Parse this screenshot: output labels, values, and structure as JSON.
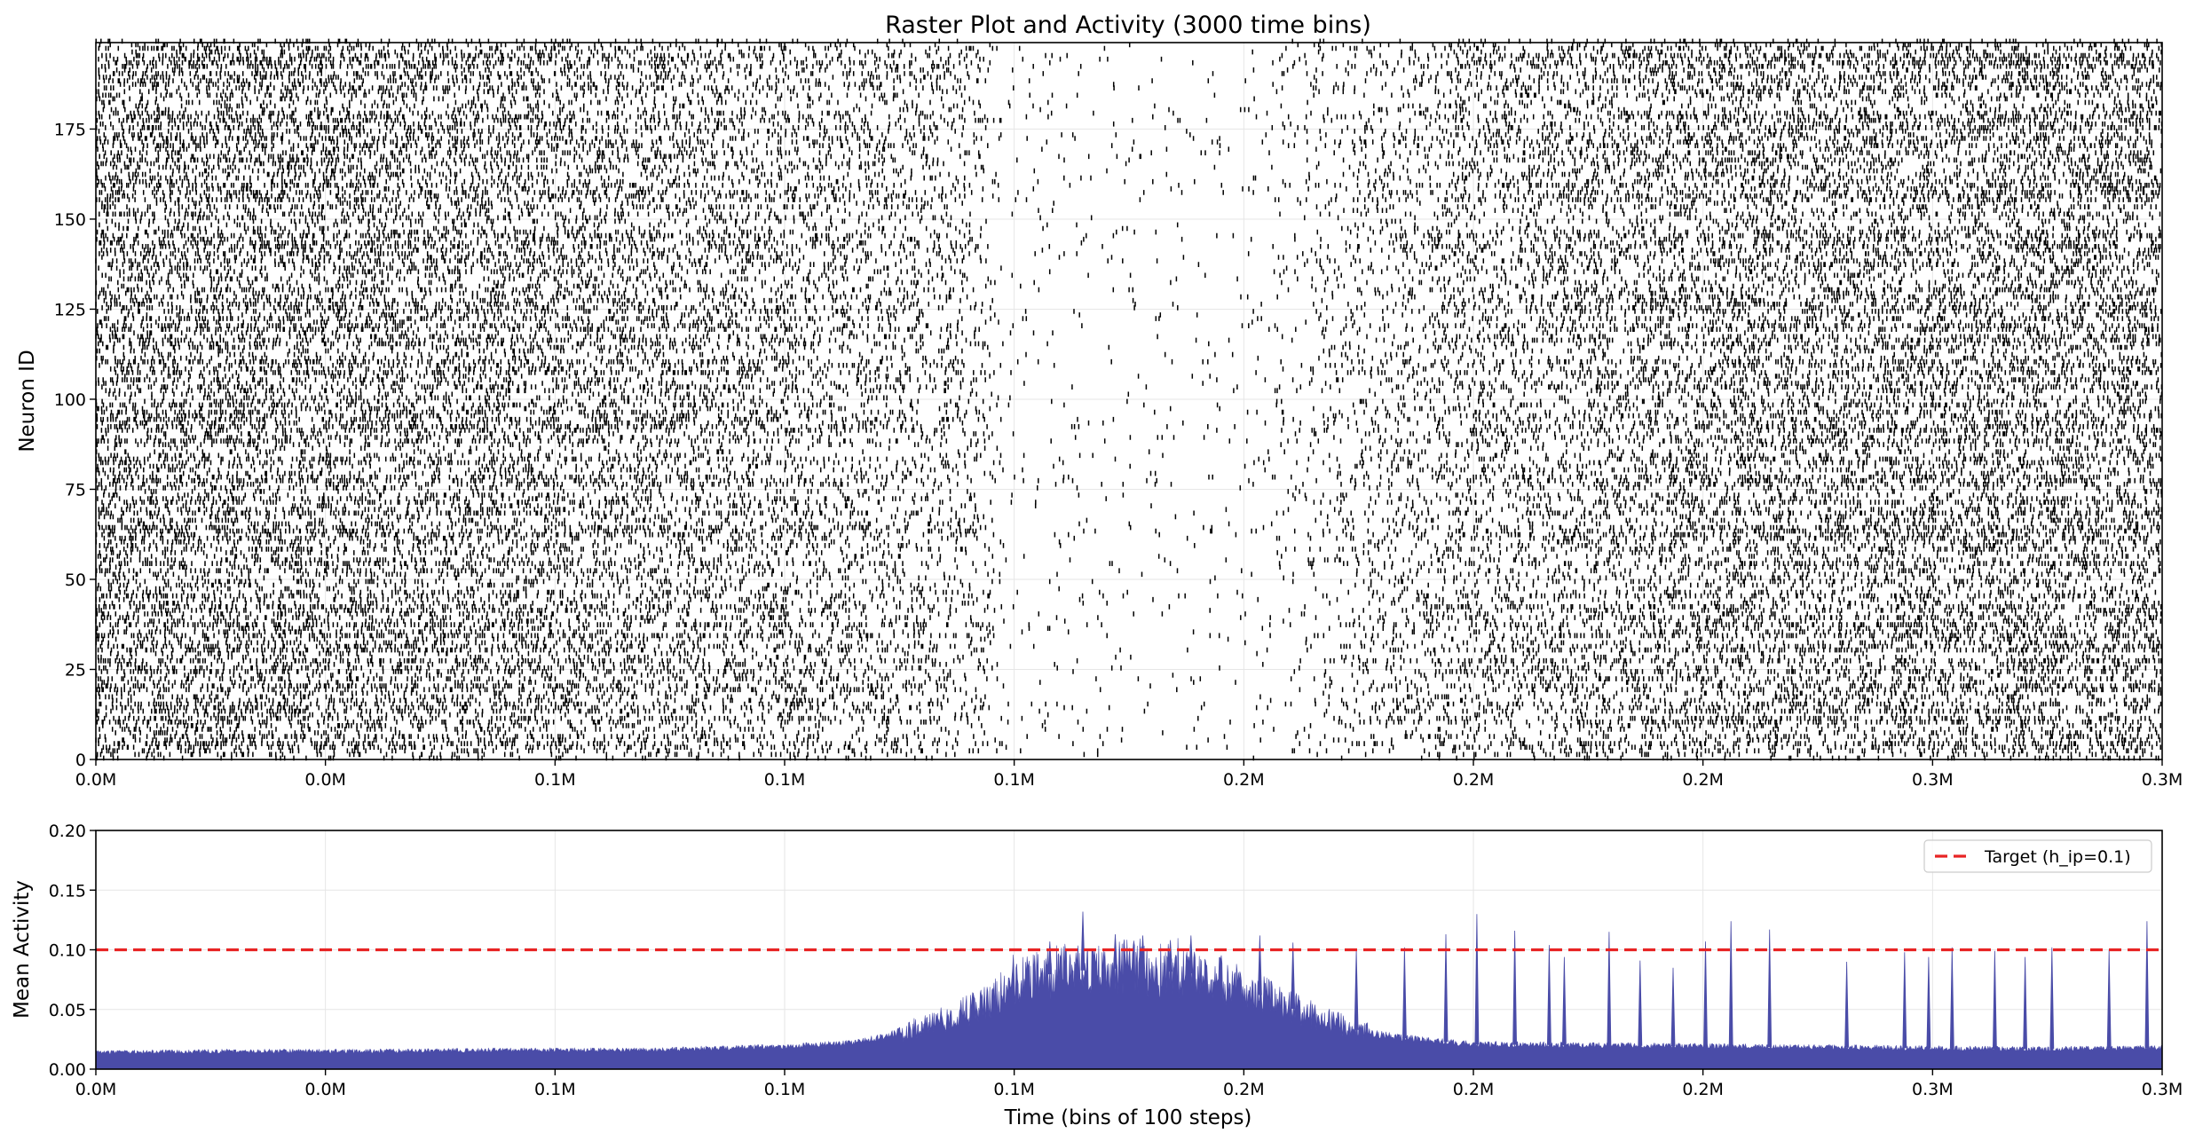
{
  "chart_data": [
    {
      "type": "raster",
      "title": "Raster Plot and Activity (3000 time bins)",
      "xlabel": "",
      "ylabel": "Neuron ID",
      "n_neurons": 200,
      "xlim": [
        0,
        3000
      ],
      "ylim": [
        0,
        199
      ],
      "x_tick_values": [
        0,
        333.3,
        666.7,
        1000,
        1333.3,
        1666.7,
        2000,
        2333.3,
        2666.7,
        3000
      ],
      "x_tick_labels": [
        "0.0M",
        "0.0M",
        "0.1M",
        "0.1M",
        "0.1M",
        "0.2M",
        "0.2M",
        "0.2M",
        "0.3M",
        "0.3M"
      ],
      "y_ticks": [
        0,
        25,
        50,
        75,
        100,
        125,
        150,
        175
      ],
      "y_tick_labels": [
        "0",
        "25",
        "50",
        "75",
        "100",
        "125",
        "150",
        "175"
      ],
      "spike_color": "#000000",
      "grid": true,
      "activity_profile": [
        {
          "t": 0,
          "rate": 0.17
        },
        {
          "t": 400,
          "rate": 0.16
        },
        {
          "t": 800,
          "rate": 0.13
        },
        {
          "t": 1150,
          "rate": 0.09
        },
        {
          "t": 1280,
          "rate": 0.06
        },
        {
          "t": 1320,
          "rate": 0.012
        },
        {
          "t": 1650,
          "rate": 0.008
        },
        {
          "t": 1760,
          "rate": 0.03
        },
        {
          "t": 1850,
          "rate": 0.06
        },
        {
          "t": 2000,
          "rate": 0.1
        },
        {
          "t": 2400,
          "rate": 0.14
        },
        {
          "t": 3000,
          "rate": 0.15
        }
      ]
    },
    {
      "type": "area",
      "title": "",
      "xlabel": "Time (bins of 100 steps)",
      "ylabel": "Mean Activity",
      "xlim": [
        0,
        3000
      ],
      "ylim": [
        0,
        0.2
      ],
      "y_ticks": [
        0.0,
        0.05,
        0.1,
        0.15,
        0.2
      ],
      "y_tick_labels": [
        "0.00",
        "0.05",
        "0.10",
        "0.15",
        "0.20"
      ],
      "x_tick_values": [
        0,
        333.3,
        666.7,
        1000,
        1333.3,
        1666.7,
        2000,
        2333.3,
        2666.7,
        3000
      ],
      "x_tick_labels": [
        "0.0M",
        "0.0M",
        "0.1M",
        "0.1M",
        "0.1M",
        "0.2M",
        "0.2M",
        "0.2M",
        "0.3M",
        "0.3M"
      ],
      "series": [
        {
          "name": "",
          "color": "#4a4ca8",
          "x": [
            0,
            200,
            400,
            600,
            800,
            1000,
            1100,
            1150,
            1200,
            1250,
            1300,
            1333,
            1400,
            1500,
            1600,
            1650,
            1700,
            1750,
            1800,
            1850,
            1900,
            2000,
            2200,
            2400,
            2600,
            2800,
            3000
          ],
          "values": [
            0.014,
            0.015,
            0.015,
            0.016,
            0.016,
            0.019,
            0.022,
            0.028,
            0.036,
            0.045,
            0.057,
            0.072,
            0.082,
            0.085,
            0.08,
            0.072,
            0.06,
            0.048,
            0.038,
            0.03,
            0.026,
            0.021,
            0.02,
            0.019,
            0.018,
            0.017,
            0.018
          ]
        }
      ],
      "spikes": [
        {
          "x": 1385,
          "y": 0.107
        },
        {
          "x": 1433,
          "y": 0.132
        },
        {
          "x": 1480,
          "y": 0.113
        },
        {
          "x": 1520,
          "y": 0.112
        },
        {
          "x": 1560,
          "y": 0.108
        },
        {
          "x": 1590,
          "y": 0.112
        },
        {
          "x": 1690,
          "y": 0.112
        },
        {
          "x": 1738,
          "y": 0.106
        },
        {
          "x": 1830,
          "y": 0.1
        },
        {
          "x": 1900,
          "y": 0.102
        },
        {
          "x": 1960,
          "y": 0.113
        },
        {
          "x": 2005,
          "y": 0.13
        },
        {
          "x": 2060,
          "y": 0.116
        },
        {
          "x": 2110,
          "y": 0.104
        },
        {
          "x": 2132,
          "y": 0.094
        },
        {
          "x": 2197,
          "y": 0.115
        },
        {
          "x": 2242,
          "y": 0.091
        },
        {
          "x": 2290,
          "y": 0.085
        },
        {
          "x": 2337,
          "y": 0.107
        },
        {
          "x": 2374,
          "y": 0.124
        },
        {
          "x": 2430,
          "y": 0.117
        },
        {
          "x": 2542,
          "y": 0.09
        },
        {
          "x": 2626,
          "y": 0.098
        },
        {
          "x": 2661,
          "y": 0.094
        },
        {
          "x": 2695,
          "y": 0.102
        },
        {
          "x": 2757,
          "y": 0.099
        },
        {
          "x": 2801,
          "y": 0.094
        },
        {
          "x": 2840,
          "y": 0.102
        },
        {
          "x": 2923,
          "y": 0.1
        },
        {
          "x": 2978,
          "y": 0.124
        }
      ],
      "reference_line": {
        "y": 0.1,
        "color": "#e82424",
        "style": "dashed",
        "label": "Target (h_ip=0.1)"
      },
      "legend_position": "top-right",
      "grid": true
    }
  ]
}
